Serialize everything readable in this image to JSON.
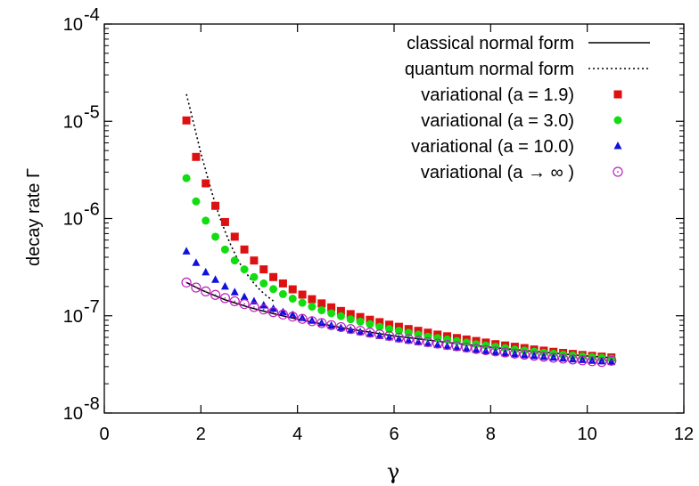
{
  "chart_data": {
    "type": "scatter",
    "xlabel": "γ",
    "ylabel": "decay rate Γ",
    "xlim": [
      0,
      12
    ],
    "ylim": [
      1e-08,
      0.0001
    ],
    "yscale": "log",
    "grid": false,
    "legend_position": "top-right",
    "x_ticks": [
      "0",
      "2",
      "4",
      "6",
      "8",
      "10",
      "12"
    ],
    "y_ticks": [
      {
        "base": "10",
        "exp": "-8"
      },
      {
        "base": "10",
        "exp": "-7"
      },
      {
        "base": "10",
        "exp": "-6"
      },
      {
        "base": "10",
        "exp": "-5"
      },
      {
        "base": "10",
        "exp": "-4"
      }
    ],
    "series": [
      {
        "name": "classical normal form",
        "style": "solid-line",
        "color": "#000000",
        "x": [
          1.7,
          2.0,
          2.5,
          3.0,
          3.5,
          4.0,
          5.0,
          6.0,
          7.0,
          8.0,
          9.0,
          10.0,
          10.5
        ],
        "y": [
          2.2e-07,
          1.85e-07,
          1.46e-07,
          1.22e-07,
          1.05e-07,
          9.2e-08,
          7.4e-08,
          6.2e-08,
          5.4e-08,
          4.75e-08,
          4.25e-08,
          3.85e-08,
          3.7e-08
        ]
      },
      {
        "name": "quantum normal form",
        "style": "dotted-line",
        "color": "#000000",
        "x": [
          1.7,
          1.8,
          1.9,
          2.0,
          2.1,
          2.2,
          2.3,
          2.4,
          2.5,
          2.6,
          2.7,
          2.8,
          2.9,
          3.0,
          3.1,
          3.2,
          3.3,
          3.4,
          3.5
        ],
        "y": [
          1.9e-05,
          1.2e-05,
          7.5e-06,
          4.7e-06,
          3.1e-06,
          2.05e-06,
          1.4e-06,
          1e-06,
          7.4e-07,
          5.6e-07,
          4.4e-07,
          3.5e-07,
          2.9e-07,
          2.5e-07,
          2.15e-07,
          1.9e-07,
          1.7e-07,
          1.55e-07,
          1.42e-07
        ]
      },
      {
        "name": "variational (a =   1.9)",
        "style": "square",
        "color": "#dd1111",
        "x": [
          1.7,
          1.9,
          2.1,
          2.3,
          2.5,
          2.7,
          2.9,
          3.1,
          3.3,
          3.5,
          3.7,
          3.9,
          4.1,
          4.3,
          4.5,
          4.7,
          4.9,
          5.1,
          5.3,
          5.5,
          5.7,
          5.9,
          6.1,
          6.3,
          6.5,
          6.7,
          6.9,
          7.1,
          7.3,
          7.5,
          7.7,
          7.9,
          8.1,
          8.3,
          8.5,
          8.7,
          8.9,
          9.1,
          9.3,
          9.5,
          9.7,
          9.9,
          10.1,
          10.3,
          10.5
        ],
        "y": [
          1.02e-05,
          4.3e-06,
          2.3e-06,
          1.35e-06,
          9.2e-07,
          6.5e-07,
          4.8e-07,
          3.7e-07,
          3e-07,
          2.5e-07,
          2.15e-07,
          1.87e-07,
          1.65e-07,
          1.48e-07,
          1.34e-07,
          1.22e-07,
          1.12e-07,
          1.04e-07,
          9.7e-08,
          9.1e-08,
          8.6e-08,
          8.1e-08,
          7.7e-08,
          7.3e-08,
          7e-08,
          6.7e-08,
          6.4e-08,
          6.15e-08,
          5.9e-08,
          5.7e-08,
          5.5e-08,
          5.3e-08,
          5.1e-08,
          4.95e-08,
          4.8e-08,
          4.65e-08,
          4.5e-08,
          4.38e-08,
          4.26e-08,
          4.15e-08,
          4.05e-08,
          3.95e-08,
          3.87e-08,
          3.8e-08,
          3.73e-08
        ]
      },
      {
        "name": "variational (a =   3.0)",
        "style": "circle",
        "color": "#11dd11",
        "x": [
          1.7,
          1.9,
          2.1,
          2.3,
          2.5,
          2.7,
          2.9,
          3.1,
          3.3,
          3.5,
          3.7,
          3.9,
          4.1,
          4.3,
          4.5,
          4.7,
          4.9,
          5.1,
          5.3,
          5.5,
          5.7,
          5.9,
          6.1,
          6.3,
          6.5,
          6.7,
          6.9,
          7.1,
          7.3,
          7.5,
          7.7,
          7.9,
          8.1,
          8.3,
          8.5,
          8.7,
          8.9,
          9.1,
          9.3,
          9.5,
          9.7,
          9.9,
          10.1,
          10.3,
          10.5
        ],
        "y": [
          2.6e-06,
          1.5e-06,
          9.5e-07,
          6.5e-07,
          4.8e-07,
          3.7e-07,
          3e-07,
          2.5e-07,
          2.15e-07,
          1.88e-07,
          1.67e-07,
          1.5e-07,
          1.36e-07,
          1.24e-07,
          1.14e-07,
          1.06e-07,
          9.9e-08,
          9.2e-08,
          8.7e-08,
          8.2e-08,
          7.7e-08,
          7.3e-08,
          7e-08,
          6.7e-08,
          6.4e-08,
          6.1e-08,
          5.9e-08,
          5.7e-08,
          5.5e-08,
          5.3e-08,
          5.1e-08,
          4.95e-08,
          4.8e-08,
          4.65e-08,
          4.5e-08,
          4.4e-08,
          4.28e-08,
          4.17e-08,
          4.07e-08,
          3.98e-08,
          3.9e-08,
          3.82e-08,
          3.75e-08,
          3.68e-08,
          3.62e-08
        ]
      },
      {
        "name": "variational (a = 10.0)",
        "style": "triangle",
        "color": "#1111dd",
        "x": [
          1.7,
          1.9,
          2.1,
          2.3,
          2.5,
          2.7,
          2.9,
          3.1,
          3.3,
          3.5,
          3.7,
          3.9,
          4.1,
          4.3,
          4.5,
          4.7,
          4.9,
          5.1,
          5.3,
          5.5,
          5.7,
          5.9,
          6.1,
          6.3,
          6.5,
          6.7,
          6.9,
          7.1,
          7.3,
          7.5,
          7.7,
          7.9,
          8.1,
          8.3,
          8.5,
          8.7,
          8.9,
          9.1,
          9.3,
          9.5,
          9.7,
          9.9,
          10.1,
          10.3,
          10.5
        ],
        "y": [
          4.6e-07,
          3.5e-07,
          2.8e-07,
          2.35e-07,
          2e-07,
          1.75e-07,
          1.56e-07,
          1.41e-07,
          1.28e-07,
          1.18e-07,
          1.09e-07,
          1.02e-07,
          9.5e-08,
          8.9e-08,
          8.4e-08,
          7.9e-08,
          7.5e-08,
          7.1e-08,
          6.8e-08,
          6.5e-08,
          6.2e-08,
          6e-08,
          5.75e-08,
          5.55e-08,
          5.35e-08,
          5.17e-08,
          5e-08,
          4.85e-08,
          4.7e-08,
          4.57e-08,
          4.45e-08,
          4.33e-08,
          4.22e-08,
          4.12e-08,
          4.03e-08,
          3.94e-08,
          3.86e-08,
          3.78e-08,
          3.71e-08,
          3.64e-08,
          3.57e-08,
          3.51e-08,
          3.45e-08,
          3.4e-08,
          3.35e-08
        ]
      },
      {
        "name": "variational (a → ∞ )",
        "style": "open-circle",
        "color": "#bb22bb",
        "x": [
          1.7,
          1.9,
          2.1,
          2.3,
          2.5,
          2.7,
          2.9,
          3.1,
          3.3,
          3.5,
          3.7,
          3.9,
          4.1,
          4.3,
          4.5,
          4.7,
          4.9,
          5.1,
          5.3,
          5.5,
          5.7,
          5.9,
          6.1,
          6.3,
          6.5,
          6.7,
          6.9,
          7.1,
          7.3,
          7.5,
          7.7,
          7.9,
          8.1,
          8.3,
          8.5,
          8.7,
          8.9,
          9.1,
          9.3,
          9.5,
          9.7,
          9.9,
          10.1,
          10.3,
          10.5
        ],
        "y": [
          2.2e-07,
          1.95e-07,
          1.78e-07,
          1.64e-07,
          1.52e-07,
          1.41e-07,
          1.32e-07,
          1.23e-07,
          1.16e-07,
          1.09e-07,
          1.03e-07,
          9.8e-08,
          9.3e-08,
          8.8e-08,
          8.4e-08,
          8e-08,
          7.65e-08,
          7.3e-08,
          7e-08,
          6.7e-08,
          6.45e-08,
          6.2e-08,
          5.95e-08,
          5.75e-08,
          5.55e-08,
          5.35e-08,
          5.17e-08,
          5e-08,
          4.85e-08,
          4.7e-08,
          4.56e-08,
          4.43e-08,
          4.3e-08,
          4.19e-08,
          4.08e-08,
          3.97e-08,
          3.88e-08,
          3.79e-08,
          3.7e-08,
          3.62e-08,
          3.55e-08,
          3.48e-08,
          3.41e-08,
          3.35e-08,
          3.45e-08
        ]
      }
    ]
  }
}
